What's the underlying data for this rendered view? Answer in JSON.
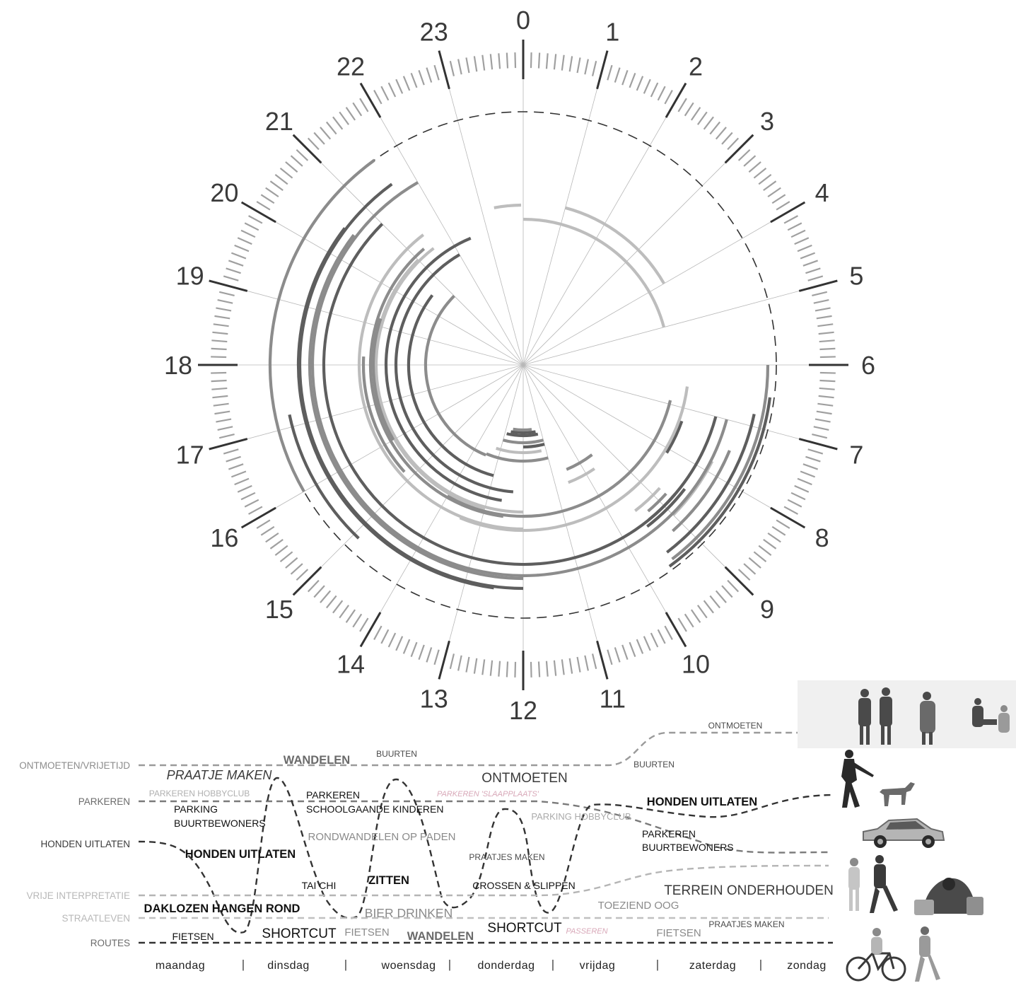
{
  "clock": {
    "hours": [
      "0",
      "1",
      "2",
      "3",
      "4",
      "5",
      "6",
      "7",
      "8",
      "9",
      "10",
      "11",
      "12",
      "13",
      "14",
      "15",
      "16",
      "17",
      "18",
      "19",
      "20",
      "21",
      "22",
      "23"
    ],
    "arcs": [
      {
        "start_hour": 23.3,
        "end_hour": 23.95,
        "shade": "#bdbdbd"
      },
      {
        "start_hour": 0.0,
        "end_hour": 5.0,
        "shade": "#bdbdbd"
      },
      {
        "start_hour": 1.0,
        "end_hour": 4.0,
        "shade": "#bdbdbd"
      },
      {
        "start_hour": 6.0,
        "end_hour": 9.5,
        "shade": "#8c8c8c"
      },
      {
        "start_hour": 6.5,
        "end_hour": 9.6,
        "shade": "#5e5e5e"
      },
      {
        "start_hour": 6.8,
        "end_hour": 9.5,
        "shade": "#5e5e5e"
      },
      {
        "start_hour": 7.5,
        "end_hour": 9.2,
        "shade": "#8c8c8c"
      },
      {
        "start_hour": 7.8,
        "end_hour": 9.0,
        "shade": "#bdbdbd"
      },
      {
        "start_hour": 8.5,
        "end_hour": 9.5,
        "shade": "#5e5e5e"
      },
      {
        "start_hour": 8.7,
        "end_hour": 9.4,
        "shade": "#5e5e5e"
      },
      {
        "start_hour": 8.8,
        "end_hour": 9.3,
        "shade": "#8c8c8c"
      },
      {
        "start_hour": 8.8,
        "end_hour": 9.5,
        "shade": "#bdbdbd"
      },
      {
        "start_hour": 7.3,
        "end_hour": 8.1,
        "shade": "#5e5e5e"
      },
      {
        "start_hour": 11.2,
        "end_hour": 12.9,
        "shade": "#5e5e5e"
      },
      {
        "start_hour": 11.3,
        "end_hour": 12.7,
        "shade": "#5e5e5e"
      },
      {
        "start_hour": 11.5,
        "end_hour": 12.6,
        "shade": "#8c8c8c"
      },
      {
        "start_hour": 11.0,
        "end_hour": 13.0,
        "shade": "#8c8c8c"
      },
      {
        "start_hour": 11.2,
        "end_hour": 13.2,
        "shade": "#bdbdbd"
      },
      {
        "start_hour": 11.0,
        "end_hour": 13.5,
        "shade": "#8c8c8c"
      },
      {
        "start_hour": 11.0,
        "end_hour": 12.0,
        "shade": "#5e5e5e"
      },
      {
        "start_hour": 6.9,
        "end_hour": 14.0,
        "shade": "#8c8c8c"
      },
      {
        "start_hour": 6.5,
        "end_hour": 13.5,
        "shade": "#bdbdbd"
      },
      {
        "start_hour": 7.0,
        "end_hour": 21.0,
        "shade": "#5e5e5e"
      },
      {
        "start_hour": 7.0,
        "end_hour": 22.0,
        "shade": "#8c8c8c"
      },
      {
        "start_hour": 12.0,
        "end_hour": 20.5,
        "shade": "#8c8c8c"
      },
      {
        "start_hour": 12.0,
        "end_hour": 21.6,
        "shade": "#5e5e5e"
      },
      {
        "start_hour": 12.5,
        "end_hour": 20.5,
        "shade": "#5e5e5e"
      },
      {
        "start_hour": 12.0,
        "end_hour": 21.5,
        "shade": "#bdbdbd"
      },
      {
        "start_hour": 13.0,
        "end_hour": 21.0,
        "shade": "#bdbdbd"
      },
      {
        "start_hour": 12.0,
        "end_hour": 21.5,
        "shade": "#bdbdbd"
      },
      {
        "start_hour": 12.5,
        "end_hour": 21.3,
        "shade": "#8c8c8c"
      },
      {
        "start_hour": 12.6,
        "end_hour": 22.5,
        "shade": "#5e5e5e"
      },
      {
        "start_hour": 12.3,
        "end_hour": 22.0,
        "shade": "#5e5e5e"
      },
      {
        "start_hour": 13.0,
        "end_hour": 20.5,
        "shade": "#5e5e5e"
      },
      {
        "start_hour": 13.5,
        "end_hour": 21.0,
        "shade": "#8c8c8c"
      },
      {
        "start_hour": 15.2,
        "end_hour": 18.2,
        "shade": "#8c8c8c"
      },
      {
        "start_hour": 16.0,
        "end_hour": 19.2,
        "shade": "#8c8c8c"
      },
      {
        "start_hour": 14.9,
        "end_hour": 17.2,
        "shade": "#5e5e5e"
      },
      {
        "start_hour": 16.0,
        "end_hour": 21.6,
        "shade": "#8c8c8c"
      },
      {
        "start_hour": 13.9,
        "end_hour": 16.4,
        "shade": "#5e5e5e"
      },
      {
        "start_hour": 9.7,
        "end_hour": 10.6,
        "shade": "#bdbdbd"
      },
      {
        "start_hour": 9.5,
        "end_hour": 10.5,
        "shade": "#8c8c8c"
      }
    ]
  },
  "bottom": {
    "row_labels": [
      "ONTMOETEN/VRIJETIJD",
      "PARKEREN",
      "HONDEN UITLATEN",
      "VRIJE INTERPRETATIE",
      "STRAATLEVEN",
      "ROUTES"
    ],
    "days": [
      "maandag",
      "dinsdag",
      "woensdag",
      "donderdag",
      "vrijdag",
      "zaterdag",
      "zondag"
    ],
    "separator": "|",
    "annotations": [
      {
        "text": "ONTMOETEN",
        "style": "dark-small"
      },
      {
        "text": "WANDELEN",
        "style": "grey-bold"
      },
      {
        "text": "BUURTEN",
        "style": "dark-small"
      },
      {
        "text": "BUURTEN",
        "style": "dark-small"
      },
      {
        "text": "PRAATJE MAKEN",
        "style": "italic-dark"
      },
      {
        "text": "ONTMOETEN",
        "style": "dark"
      },
      {
        "text": "PARKEREN HOBBYCLUB",
        "style": "light-small"
      },
      {
        "text": "PARKEREN",
        "style": "black"
      },
      {
        "text": "SCHOOLGAANDE KINDEREN",
        "style": "black"
      },
      {
        "text": "PARKEREN 'SLAAPPLAATS'",
        "style": "pink-italic"
      },
      {
        "text": "HONDEN UITLATEN",
        "style": "black-bold"
      },
      {
        "text": "PARKING",
        "style": "black"
      },
      {
        "text": "BUURTBEWONERS",
        "style": "black"
      },
      {
        "text": "PARKING HOBBYCLUB",
        "style": "light"
      },
      {
        "text": "RONDWANDELEN OP PADEN",
        "style": "grey"
      },
      {
        "text": "PARKEREN",
        "style": "black"
      },
      {
        "text": "BUURTBEWONERS",
        "style": "black"
      },
      {
        "text": "HONDEN UITLATEN",
        "style": "black-bold"
      },
      {
        "text": "PRAATJES MAKEN",
        "style": "dark-small"
      },
      {
        "text": "TAI CHI",
        "style": "black"
      },
      {
        "text": "ZITTEN",
        "style": "black-bold"
      },
      {
        "text": "CROSSEN & SLIPPEN",
        "style": "black"
      },
      {
        "text": "TERREIN ONDERHOUDEN",
        "style": "dark-large"
      },
      {
        "text": "DAKLOZEN HANGEN ROND",
        "style": "black-bold"
      },
      {
        "text": "BIER DRINKEN",
        "style": "grey-large"
      },
      {
        "text": "TOEZIEND OOG",
        "style": "grey"
      },
      {
        "text": "FIETSEN",
        "style": "black"
      },
      {
        "text": "SHORTCUT",
        "style": "black-large"
      },
      {
        "text": "FIETSEN",
        "style": "grey"
      },
      {
        "text": "WANDELEN",
        "style": "grey-bold"
      },
      {
        "text": "SHORTCUT",
        "style": "black-large"
      },
      {
        "text": "PASSEREN",
        "style": "pink-italic"
      },
      {
        "text": "FIETSEN",
        "style": "grey"
      },
      {
        "text": "PRAATJES MAKEN",
        "style": "dark-small"
      }
    ],
    "photos": [
      "people-talking-photo",
      "dog-walker-photo",
      "car-photo",
      "tai-chi-photo",
      "homeless-photo",
      "cyclist-photo"
    ]
  }
}
